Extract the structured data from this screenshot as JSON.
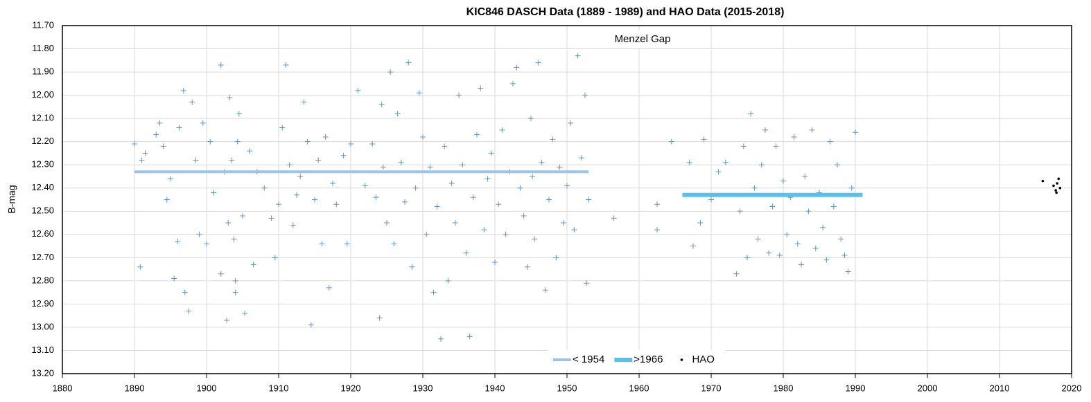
{
  "chart_data": {
    "type": "scatter",
    "title": "KIC846 DASCH Data (1889 - 1989) and HAO Data (2015-2018)",
    "y_label": "B-mag",
    "annotation": "Menzel Gap",
    "xlim": [
      1880,
      2020
    ],
    "xticks": [
      1880,
      1890,
      1900,
      1910,
      1920,
      1930,
      1940,
      1950,
      1960,
      1970,
      1980,
      1990,
      2000,
      2010,
      2020
    ],
    "ylim": [
      11.7,
      13.2
    ],
    "y_reversed": true,
    "yticks": [
      {
        "value": 11.7,
        "label": "11.70"
      },
      {
        "value": 11.8,
        "label": "11.80"
      },
      {
        "value": 11.9,
        "label": "11.90"
      },
      {
        "value": 12.0,
        "label": "12.00"
      },
      {
        "value": 12.1,
        "label": "12.10"
      },
      {
        "value": 12.2,
        "label": "12.20"
      },
      {
        "value": 12.3,
        "label": "12.30"
      },
      {
        "value": 12.4,
        "label": "12.40"
      },
      {
        "value": 12.5,
        "label": "12.50"
      },
      {
        "value": 12.6,
        "label": "12.60"
      },
      {
        "value": 12.7,
        "label": "12.70"
      },
      {
        "value": 12.8,
        "label": "12.80"
      },
      {
        "value": 12.9,
        "label": "12.90"
      },
      {
        "value": 13.0,
        "label": "13.00"
      },
      {
        "value": 13.1,
        "label": "13.10"
      },
      {
        "value": 13.2,
        "label": "13.20"
      }
    ],
    "grid": true,
    "legend": "bottom",
    "series": [
      {
        "color": "#5f93bf",
        "marker": "cross",
        "x": [
          1890,
          1890.8,
          1891,
          1891.5,
          1893,
          1893.5,
          1894,
          1894.5,
          1895,
          1895.5,
          1896,
          1896.2,
          1896.8,
          1897,
          1897.5,
          1898,
          1898.5,
          1899,
          1899.5,
          1900,
          1900.5,
          1901,
          1902,
          1902,
          1902.5,
          1902.8,
          1903,
          1903.2,
          1903.5,
          1903.8,
          1904,
          1904,
          1904.3,
          1904.5,
          1905,
          1905.3,
          1906,
          1906.5,
          1907,
          1908,
          1909,
          1909.5,
          1910,
          1910.5,
          1911,
          1911.5,
          1912,
          1912.5,
          1913,
          1913.5,
          1914,
          1914.5,
          1915,
          1915.5,
          1916,
          1916.5,
          1917,
          1917.5,
          1918,
          1919,
          1919.5,
          1920,
          1921,
          1922,
          1923,
          1923.5,
          1924,
          1924.3,
          1924.5,
          1925,
          1925.5,
          1926,
          1926.5,
          1927,
          1927.5,
          1928,
          1928.5,
          1929,
          1929.5,
          1930,
          1930.5,
          1931,
          1931.5,
          1932,
          1932.5,
          1933,
          1933.5,
          1934,
          1934.5,
          1935,
          1935.5,
          1936,
          1936.5,
          1937,
          1937.5,
          1938,
          1938.5,
          1939,
          1939.5,
          1940,
          1940.5,
          1941,
          1941.5,
          1942,
          1942.5,
          1943,
          1943.5,
          1944,
          1944.5,
          1945,
          1945.2,
          1945.5,
          1946,
          1946.5,
          1947,
          1947.5,
          1948,
          1948.5,
          1949,
          1949.5,
          1950,
          1950.5,
          1951,
          1951.5,
          1952,
          1952.5,
          1952.7,
          1953,
          1956.5,
          1962.5,
          1962.5,
          1964.5,
          1967,
          1967.5,
          1968.5,
          1969,
          1970,
          1971,
          1972,
          1973.5,
          1974,
          1974.5,
          1975,
          1975.5,
          1976,
          1976.5,
          1977,
          1977.5,
          1978,
          1978.5,
          1979,
          1979.5,
          1980,
          1980.5,
          1981,
          1981.5,
          1982,
          1982.5,
          1983,
          1983.5,
          1984,
          1984.5,
          1985,
          1985.5,
          1986,
          1986.5,
          1987,
          1987.5,
          1988,
          1988.5,
          1989,
          1989.5,
          1990
        ],
        "values": [
          12.21,
          12.74,
          12.28,
          12.25,
          12.17,
          12.12,
          12.22,
          12.45,
          12.36,
          12.79,
          12.63,
          12.14,
          11.98,
          12.85,
          12.93,
          12.03,
          12.28,
          12.6,
          12.12,
          12.64,
          12.2,
          12.42,
          11.87,
          12.77,
          12.33,
          12.97,
          12.55,
          12.01,
          12.28,
          12.62,
          12.85,
          12.8,
          12.2,
          12.08,
          12.52,
          12.94,
          12.24,
          12.73,
          12.33,
          12.4,
          12.53,
          12.7,
          12.47,
          12.14,
          11.87,
          12.3,
          12.56,
          12.43,
          12.35,
          12.03,
          12.2,
          12.99,
          12.45,
          12.28,
          12.64,
          12.18,
          12.83,
          12.38,
          12.47,
          12.26,
          12.64,
          12.21,
          11.98,
          12.39,
          12.21,
          12.44,
          12.96,
          12.04,
          12.31,
          12.55,
          11.9,
          12.64,
          12.08,
          12.29,
          12.46,
          11.86,
          12.74,
          12.4,
          11.99,
          12.18,
          12.6,
          12.31,
          12.85,
          12.48,
          13.05,
          12.22,
          12.8,
          12.38,
          12.55,
          12.0,
          12.3,
          12.68,
          13.04,
          12.44,
          12.17,
          11.97,
          12.58,
          12.36,
          12.25,
          12.72,
          12.47,
          12.15,
          12.6,
          12.33,
          11.95,
          11.88,
          12.4,
          12.52,
          12.74,
          12.1,
          12.35,
          12.62,
          11.86,
          12.29,
          12.84,
          12.45,
          12.19,
          12.7,
          12.31,
          12.55,
          12.39,
          12.12,
          12.58,
          11.83,
          12.27,
          12.0,
          12.81,
          12.45,
          12.53,
          12.47,
          12.58,
          12.2,
          12.29,
          12.65,
          12.55,
          12.19,
          12.45,
          12.33,
          12.29,
          12.77,
          12.5,
          12.22,
          12.7,
          12.08,
          12.4,
          12.62,
          12.3,
          12.15,
          12.68,
          12.48,
          12.22,
          12.69,
          12.37,
          12.6,
          12.44,
          12.18,
          12.64,
          12.73,
          12.35,
          12.5,
          12.15,
          12.66,
          12.42,
          12.57,
          12.71,
          12.2,
          12.48,
          12.3,
          12.62,
          12.69,
          12.76,
          12.4,
          12.16
        ]
      },
      {
        "name": "< 1954",
        "color": "#9dc3e6",
        "marker": "line",
        "width": 4,
        "x": [
          1890,
          1953
        ],
        "values": [
          12.33,
          12.33
        ]
      },
      {
        "name": ">1966",
        "color": "#5bc0e8",
        "marker": "line",
        "width": 6,
        "x": [
          1966,
          1991
        ],
        "values": [
          12.43,
          12.43
        ]
      },
      {
        "name": "HAO",
        "color": "#000000",
        "marker": "dot",
        "x": [
          2016,
          2017.5,
          2017.8,
          2018,
          2018.2,
          2018.4,
          2017.9
        ],
        "values": [
          12.37,
          12.39,
          12.41,
          12.38,
          12.36,
          12.4,
          12.42
        ]
      }
    ]
  }
}
